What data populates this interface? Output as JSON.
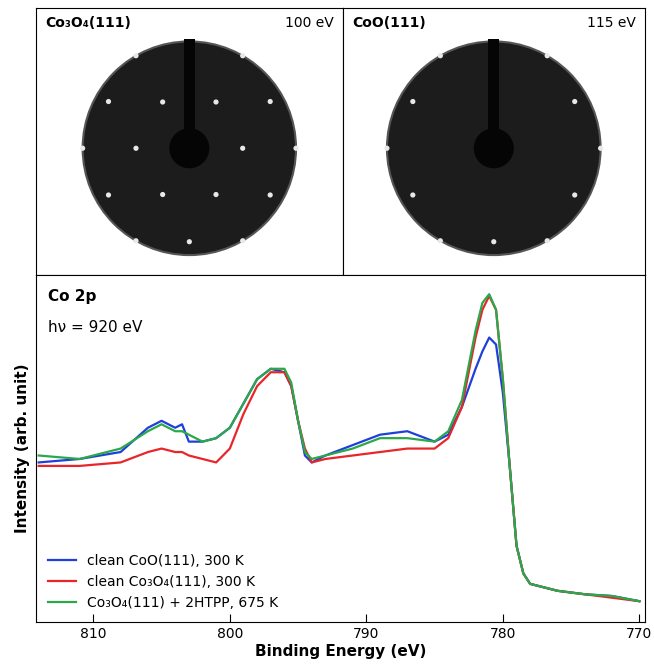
{
  "leed_panels": [
    {
      "label": "Co₃O₄(111)",
      "energy": "100 eV"
    },
    {
      "label": "CoO(111)",
      "energy": "115 eV"
    }
  ],
  "chart_data": {
    "type": "line",
    "annotations": [
      "Co 2p",
      "hν = 920 eV"
    ],
    "x_label": "Binding Energy (eV)",
    "y_label": "Intensity (arb. unit)",
    "x": [
      814,
      811,
      808,
      806,
      805,
      804,
      803.5,
      803,
      802,
      801,
      800,
      799,
      798,
      797,
      796,
      795.5,
      795,
      794.5,
      794,
      793,
      791,
      789,
      787,
      785,
      784,
      783,
      782,
      781.5,
      781,
      780.5,
      780,
      779.5,
      779,
      778.5,
      778,
      776,
      774,
      772,
      770
    ],
    "series": [
      {
        "name": "clean CoO(111), 300 K",
        "color": "#1f3fdb",
        "values": [
          0.46,
          0.47,
          0.49,
          0.56,
          0.58,
          0.56,
          0.57,
          0.52,
          0.52,
          0.53,
          0.56,
          0.63,
          0.7,
          0.73,
          0.72,
          0.68,
          0.58,
          0.48,
          0.46,
          0.48,
          0.51,
          0.54,
          0.55,
          0.52,
          0.54,
          0.62,
          0.73,
          0.78,
          0.82,
          0.8,
          0.66,
          0.45,
          0.22,
          0.14,
          0.11,
          0.09,
          0.08,
          0.075,
          0.06
        ]
      },
      {
        "name": "clean Co₃O₄(111), 300 K",
        "color": "#e8262a",
        "values": [
          0.45,
          0.45,
          0.46,
          0.49,
          0.5,
          0.49,
          0.49,
          0.48,
          0.47,
          0.46,
          0.5,
          0.6,
          0.68,
          0.72,
          0.72,
          0.68,
          0.58,
          0.5,
          0.46,
          0.47,
          0.48,
          0.49,
          0.5,
          0.5,
          0.53,
          0.62,
          0.82,
          0.9,
          0.94,
          0.9,
          0.7,
          0.45,
          0.22,
          0.14,
          0.11,
          0.09,
          0.08,
          0.07,
          0.06
        ]
      },
      {
        "name": "Co₃O₄(111) + 2HTPP, 675 K",
        "color": "#2aa84a",
        "values": [
          0.48,
          0.47,
          0.5,
          0.55,
          0.57,
          0.55,
          0.55,
          0.54,
          0.52,
          0.53,
          0.56,
          0.63,
          0.7,
          0.73,
          0.73,
          0.69,
          0.58,
          0.49,
          0.47,
          0.48,
          0.5,
          0.53,
          0.53,
          0.52,
          0.55,
          0.64,
          0.84,
          0.92,
          0.945,
          0.9,
          0.7,
          0.45,
          0.22,
          0.14,
          0.11,
          0.09,
          0.08,
          0.075,
          0.06
        ]
      }
    ],
    "xlim": [
      814.2,
      769.6
    ],
    "xticks": [
      810,
      800,
      790,
      780,
      770
    ],
    "ylim": [
      0,
      1
    ],
    "yticks": [],
    "tick_labels": "x",
    "grid": false,
    "legend": "lower left"
  }
}
